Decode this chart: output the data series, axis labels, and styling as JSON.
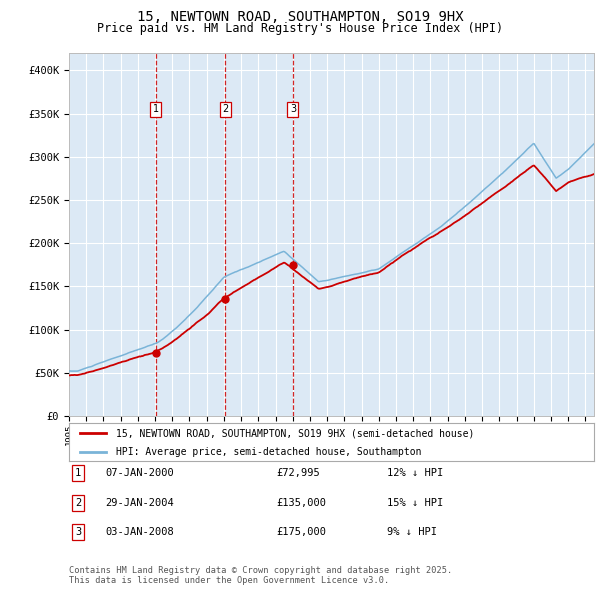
{
  "title": "15, NEWTOWN ROAD, SOUTHAMPTON, SO19 9HX",
  "subtitle": "Price paid vs. HM Land Registry's House Price Index (HPI)",
  "title_fontsize": 10,
  "subtitle_fontsize": 8.5,
  "plot_bg_color": "#dce9f5",
  "grid_color": "#ffffff",
  "ylim": [
    0,
    420000
  ],
  "yticks": [
    0,
    50000,
    100000,
    150000,
    200000,
    250000,
    300000,
    350000,
    400000
  ],
  "ytick_labels": [
    "£0",
    "£50K",
    "£100K",
    "£150K",
    "£200K",
    "£250K",
    "£300K",
    "£350K",
    "£400K"
  ],
  "hpi_color": "#7ab4d8",
  "price_color": "#cc0000",
  "marker_color": "#cc0000",
  "vline_color": "#cc0000",
  "sale_dates": [
    2000.04,
    2004.08,
    2008.01
  ],
  "sale_prices": [
    72995,
    135000,
    175000
  ],
  "sale_labels": [
    "1",
    "2",
    "3"
  ],
  "sale_info": [
    {
      "label": "1",
      "date": "07-JAN-2000",
      "price": "£72,995",
      "hpi": "12% ↓ HPI"
    },
    {
      "label": "2",
      "date": "29-JAN-2004",
      "price": "£135,000",
      "hpi": "15% ↓ HPI"
    },
    {
      "label": "3",
      "date": "03-JAN-2008",
      "price": "£175,000",
      "hpi": "9% ↓ HPI"
    }
  ],
  "legend_line1": "15, NEWTOWN ROAD, SOUTHAMPTON, SO19 9HX (semi-detached house)",
  "legend_line2": "HPI: Average price, semi-detached house, Southampton",
  "footer": "Contains HM Land Registry data © Crown copyright and database right 2025.\nThis data is licensed under the Open Government Licence v3.0.",
  "xstart": 1995,
  "xend": 2025.5
}
